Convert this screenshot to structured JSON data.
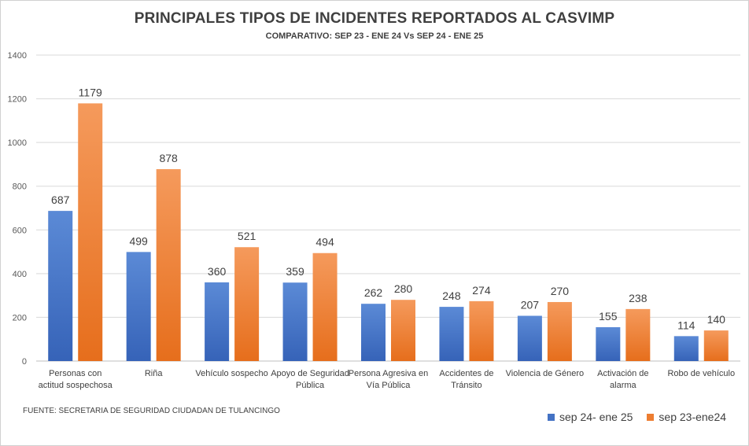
{
  "chart_data": {
    "type": "bar",
    "title": "PRINCIPALES TIPOS DE INCIDENTES REPORTADOS  AL CASVIMP",
    "subtitle": "COMPARATIVO:  SEP 23 - ENE 24 Vs SEP 24 - ENE 25",
    "categories": [
      [
        "Personas con",
        "actitud sospechosa"
      ],
      [
        "Riña"
      ],
      [
        "Vehículo sospecho"
      ],
      [
        "Apoyo de Seguridad",
        "Pública"
      ],
      [
        "Persona Agresiva en",
        "Vía Pública"
      ],
      [
        "Accidentes de",
        "Tránsito"
      ],
      [
        "Violencia de Género"
      ],
      [
        "Activación de",
        "alarma"
      ],
      [
        "Robo de vehículo"
      ]
    ],
    "series": [
      {
        "name": "sep 24- ene 25",
        "color": "#4472c4",
        "values": [
          687,
          499,
          360,
          359,
          262,
          248,
          207,
          155,
          114
        ]
      },
      {
        "name": "sep 23-ene24",
        "color": "#ed7d31",
        "values": [
          1179,
          878,
          521,
          494,
          280,
          274,
          270,
          238,
          140
        ]
      }
    ],
    "ylim": [
      0,
      1400
    ],
    "yticks": [
      0,
      200,
      400,
      600,
      800,
      1000,
      1200,
      1400
    ],
    "grid": true,
    "legend_position": "bottom-right",
    "source": "FUENTE: SECRETARIA DE SEGURIDAD CIUDADAN DE TULANCINGO"
  }
}
